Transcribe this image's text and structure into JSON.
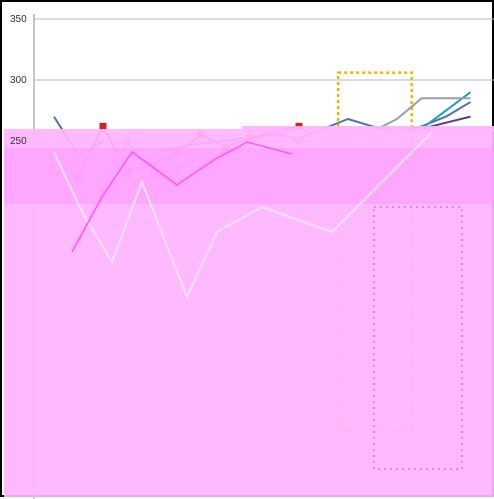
{
  "chart_data": {
    "type": "line",
    "ylim": [
      0,
      350
    ],
    "y_ticks": [
      {
        "value": 350,
        "label": "350"
      },
      {
        "value": 300,
        "label": "300"
      },
      {
        "value": 250,
        "label": "250"
      }
    ],
    "grid": true,
    "highlight_box": {
      "x_from": 11.6,
      "x_to": 14.6,
      "y_from": 12,
      "y_to": 306,
      "color": "#f2b400"
    },
    "overlay_color": "#ffb4ff",
    "series": [
      {
        "color": "#4f74a8",
        "values": [
          270,
          238,
          250,
          null,
          240,
          245,
          248,
          250,
          253,
          255,
          252,
          260,
          268,
          262,
          258,
          262,
          270,
          282
        ]
      },
      {
        "color": "#cc2222",
        "marker": "square",
        "values": [
          null,
          220,
          262,
          225,
          230,
          240,
          255,
          245,
          252,
          258,
          262,
          null,
          null,
          null,
          null,
          null,
          null,
          null
        ]
      },
      {
        "color": "#1a9cc8",
        "values": [
          null,
          null,
          null,
          null,
          null,
          null,
          null,
          null,
          null,
          null,
          null,
          null,
          null,
          null,
          null,
          260,
          275,
          290
        ]
      },
      {
        "color": "#9aa0aa",
        "values": [
          null,
          null,
          null,
          null,
          null,
          null,
          null,
          null,
          null,
          null,
          null,
          null,
          null,
          258,
          268,
          285,
          285,
          285
        ]
      },
      {
        "color": "#5a3a8c",
        "values": [
          null,
          null,
          null,
          null,
          null,
          null,
          null,
          null,
          null,
          null,
          null,
          null,
          null,
          null,
          null,
          260,
          265,
          270
        ]
      },
      {
        "color": "#ff66ff",
        "marker": "circle",
        "values": [
          null,
          168,
          210,
          250,
          220,
          228,
          230,
          240,
          248,
          258,
          250,
          null,
          null,
          null,
          null,
          null,
          null,
          null
        ]
      }
    ]
  }
}
